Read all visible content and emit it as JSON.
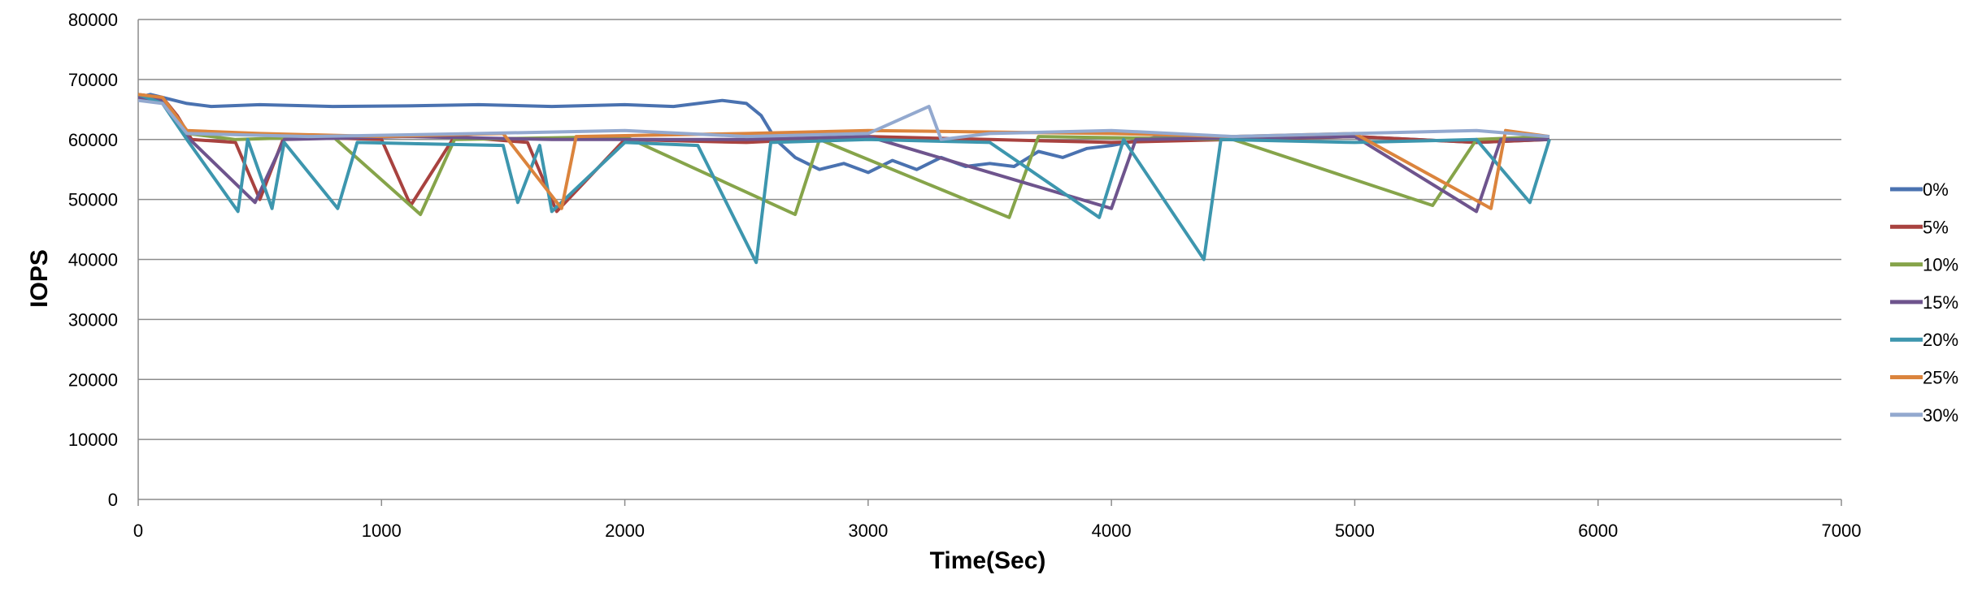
{
  "chart_data": {
    "type": "line",
    "title": "",
    "xlabel": "Time(Sec)",
    "ylabel": "IOPS",
    "xlim": [
      0,
      7000
    ],
    "ylim": [
      0,
      80000
    ],
    "x_ticks": [
      "0",
      "1000",
      "2000",
      "3000",
      "4000",
      "5000",
      "6000",
      "7000"
    ],
    "y_ticks": [
      "0",
      "10000",
      "20000",
      "30000",
      "40000",
      "50000",
      "60000",
      "70000",
      "80000"
    ],
    "grid": "horizontal",
    "legend_position": "right",
    "series": [
      {
        "name": "0%",
        "color": "#4a72b0",
        "points": [
          [
            0,
            67000
          ],
          [
            50,
            67500
          ],
          [
            100,
            67000
          ],
          [
            150,
            66500
          ],
          [
            200,
            66000
          ],
          [
            300,
            65500
          ],
          [
            500,
            65800
          ],
          [
            800,
            65500
          ],
          [
            1100,
            65600
          ],
          [
            1400,
            65800
          ],
          [
            1700,
            65500
          ],
          [
            2000,
            65800
          ],
          [
            2200,
            65500
          ],
          [
            2400,
            66500
          ],
          [
            2500,
            66000
          ],
          [
            2560,
            64000
          ],
          [
            2620,
            60000
          ],
          [
            2700,
            57000
          ],
          [
            2800,
            55000
          ],
          [
            2900,
            56000
          ],
          [
            3000,
            54500
          ],
          [
            3100,
            56500
          ],
          [
            3200,
            55000
          ],
          [
            3300,
            57000
          ],
          [
            3400,
            55500
          ],
          [
            3500,
            56000
          ],
          [
            3600,
            55500
          ],
          [
            3700,
            58000
          ],
          [
            3800,
            57000
          ],
          [
            3900,
            58500
          ],
          [
            4000,
            59000
          ],
          [
            4200,
            60500
          ],
          [
            4500,
            60000
          ],
          [
            5000,
            60500
          ],
          [
            5500,
            59500
          ],
          [
            5800,
            60000
          ]
        ]
      },
      {
        "name": "5%",
        "color": "#a8423f",
        "points": [
          [
            0,
            67500
          ],
          [
            100,
            67000
          ],
          [
            160,
            64000
          ],
          [
            220,
            60000
          ],
          [
            400,
            59500
          ],
          [
            500,
            50000
          ],
          [
            600,
            60500
          ],
          [
            1000,
            60000
          ],
          [
            1120,
            49000
          ],
          [
            1300,
            60500
          ],
          [
            1600,
            59500
          ],
          [
            1720,
            48000
          ],
          [
            2000,
            60000
          ],
          [
            2500,
            59500
          ],
          [
            3000,
            60500
          ],
          [
            3500,
            60000
          ],
          [
            4000,
            59500
          ],
          [
            4500,
            60000
          ],
          [
            5000,
            60500
          ],
          [
            5500,
            59500
          ],
          [
            5800,
            60000
          ]
        ]
      },
      {
        "name": "10%",
        "color": "#86a44a",
        "points": [
          [
            0,
            67500
          ],
          [
            100,
            66500
          ],
          [
            200,
            61000
          ],
          [
            400,
            60000
          ],
          [
            800,
            60500
          ],
          [
            1160,
            47500
          ],
          [
            1300,
            60000
          ],
          [
            2000,
            60500
          ],
          [
            2700,
            47500
          ],
          [
            2800,
            60000
          ],
          [
            3580,
            47000
          ],
          [
            3700,
            60500
          ],
          [
            4500,
            60000
          ],
          [
            5320,
            49000
          ],
          [
            5500,
            60000
          ],
          [
            5800,
            60500
          ]
        ]
      },
      {
        "name": "15%",
        "color": "#6e548d",
        "points": [
          [
            0,
            67000
          ],
          [
            100,
            66500
          ],
          [
            200,
            60500
          ],
          [
            480,
            49500
          ],
          [
            600,
            60000
          ],
          [
            1100,
            60500
          ],
          [
            1700,
            60000
          ],
          [
            2500,
            60000
          ],
          [
            3000,
            60500
          ],
          [
            4000,
            48500
          ],
          [
            4100,
            60000
          ],
          [
            5000,
            60500
          ],
          [
            5500,
            48000
          ],
          [
            5600,
            60000
          ],
          [
            5800,
            60000
          ]
        ]
      },
      {
        "name": "20%",
        "color": "#3d96ae",
        "points": [
          [
            0,
            67500
          ],
          [
            100,
            66000
          ],
          [
            200,
            60000
          ],
          [
            410,
            48000
          ],
          [
            450,
            60000
          ],
          [
            550,
            48500
          ],
          [
            600,
            59500
          ],
          [
            820,
            48500
          ],
          [
            900,
            59500
          ],
          [
            1500,
            59000
          ],
          [
            1560,
            49500
          ],
          [
            1650,
            59000
          ],
          [
            1700,
            48000
          ],
          [
            2000,
            59500
          ],
          [
            2300,
            59000
          ],
          [
            2540,
            39500
          ],
          [
            2600,
            59500
          ],
          [
            3000,
            60000
          ],
          [
            3500,
            59500
          ],
          [
            3950,
            47000
          ],
          [
            4050,
            60000
          ],
          [
            4380,
            40000
          ],
          [
            4450,
            60000
          ],
          [
            5000,
            59500
          ],
          [
            5500,
            60000
          ],
          [
            5720,
            49500
          ],
          [
            5800,
            60000
          ]
        ]
      },
      {
        "name": "25%",
        "color": "#db843d",
        "points": [
          [
            0,
            67500
          ],
          [
            100,
            67000
          ],
          [
            200,
            61500
          ],
          [
            500,
            61000
          ],
          [
            1000,
            60500
          ],
          [
            1500,
            61000
          ],
          [
            1740,
            48500
          ],
          [
            1800,
            60500
          ],
          [
            2500,
            61000
          ],
          [
            3000,
            61500
          ],
          [
            4000,
            61000
          ],
          [
            4500,
            60500
          ],
          [
            5000,
            61000
          ],
          [
            5560,
            48500
          ],
          [
            5620,
            61500
          ],
          [
            5800,
            60500
          ]
        ]
      },
      {
        "name": "30%",
        "color": "#93a9cf",
        "points": [
          [
            0,
            66500
          ],
          [
            100,
            66000
          ],
          [
            200,
            61000
          ],
          [
            700,
            60500
          ],
          [
            1400,
            61000
          ],
          [
            2000,
            61500
          ],
          [
            2500,
            60500
          ],
          [
            3000,
            61000
          ],
          [
            3250,
            65500
          ],
          [
            3300,
            60000
          ],
          [
            3500,
            61000
          ],
          [
            4000,
            61500
          ],
          [
            4500,
            60500
          ],
          [
            5000,
            61000
          ],
          [
            5500,
            61500
          ],
          [
            5800,
            60500
          ]
        ]
      }
    ]
  }
}
